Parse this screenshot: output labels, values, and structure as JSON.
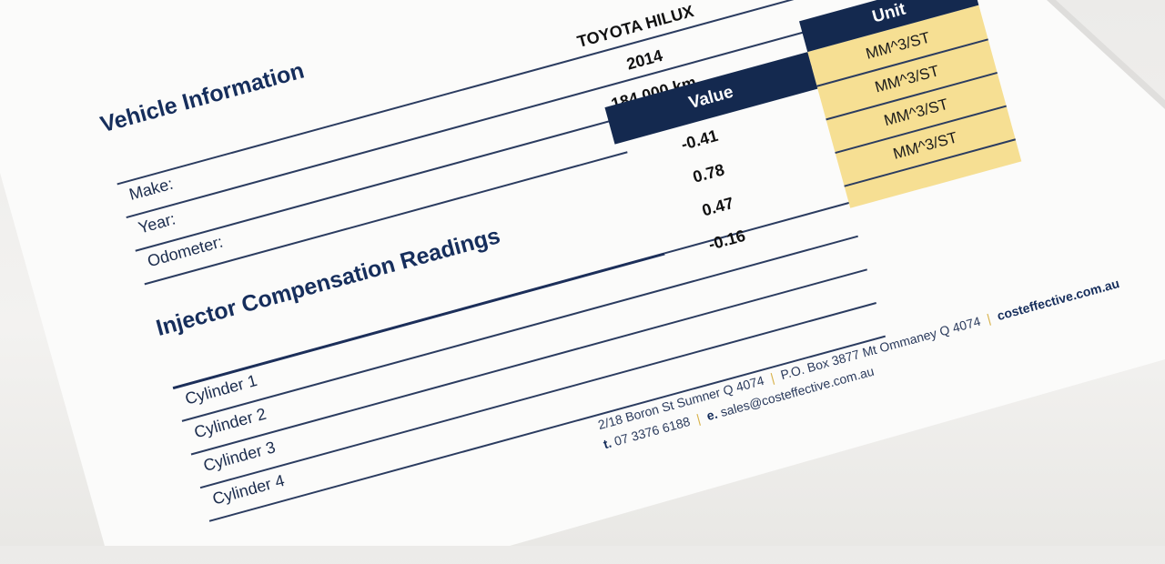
{
  "vehicle": {
    "title": "Vehicle Information",
    "fields": [
      {
        "label": "Make:",
        "value": "TOYOTA HILUX"
      },
      {
        "label": "Year:",
        "value": "2014"
      },
      {
        "label": "Odometer:",
        "value": "184,000 km"
      }
    ]
  },
  "injector": {
    "title": "Injector Compensation Readings",
    "value_header": "Value",
    "unit_header": "Unit",
    "rows": [
      {
        "label": "Cylinder 1",
        "value": "-0.41",
        "unit": "MM^3/ST"
      },
      {
        "label": "Cylinder 2",
        "value": "0.78",
        "unit": "MM^3/ST"
      },
      {
        "label": "Cylinder 3",
        "value": "0.47",
        "unit": "MM^3/ST"
      },
      {
        "label": "Cylinder 4",
        "value": "-0.16",
        "unit": "MM^3/ST"
      }
    ]
  },
  "footer": {
    "address": "2/18 Boron St Sumner Q 4074",
    "po_box": "P.O. Box 3877 Mt Ommaney Q 4074",
    "website": "costeffective.com.au",
    "phone_prefix": "t.",
    "phone": "07 3376 6188",
    "email_prefix": "e.",
    "email": "sales@costeffective.com.au"
  },
  "colors": {
    "navy": "#14294f",
    "gold": "#f6df93",
    "paper": "#fbfbfa"
  }
}
